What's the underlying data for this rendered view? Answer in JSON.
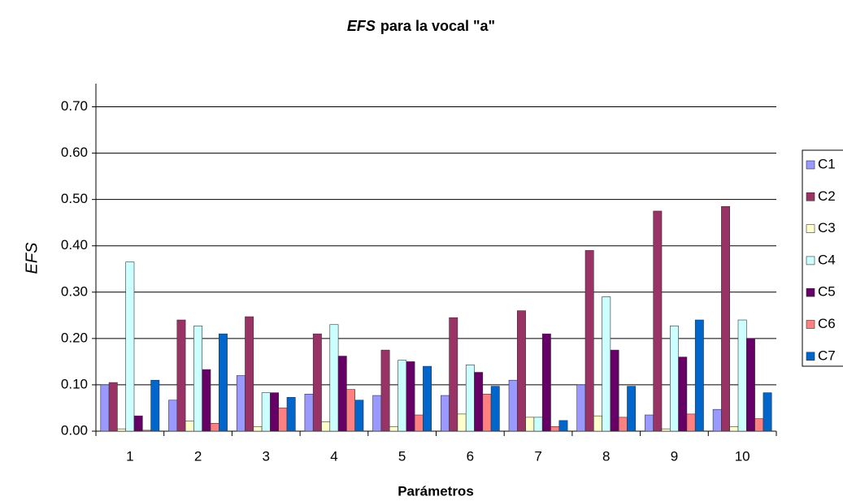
{
  "chart_data": {
    "type": "bar",
    "title_emphasis": "EFS",
    "title": "para la vocal \"a\"",
    "x_label": "Parámetros",
    "y_label": "EFS",
    "categories": [
      "1",
      "2",
      "3",
      "4",
      "5",
      "6",
      "7",
      "8",
      "9",
      "10"
    ],
    "series": [
      {
        "name": "C1",
        "color": "#9999ff",
        "values": [
          0.1,
          0.067,
          0.12,
          0.08,
          0.077,
          0.077,
          0.11,
          0.1,
          0.035,
          0.047
        ]
      },
      {
        "name": "C2",
        "color": "#993366",
        "values": [
          0.105,
          0.24,
          0.247,
          0.21,
          0.175,
          0.245,
          0.26,
          0.39,
          0.475,
          0.485
        ]
      },
      {
        "name": "C3",
        "color": "#ffffcc",
        "values": [
          0.005,
          0.022,
          0.01,
          0.02,
          0.01,
          0.037,
          0.03,
          0.033,
          0.005,
          0.01
        ]
      },
      {
        "name": "C4",
        "color": "#ccffff",
        "values": [
          0.365,
          0.227,
          0.083,
          0.23,
          0.153,
          0.143,
          0.03,
          0.29,
          0.227,
          0.24
        ]
      },
      {
        "name": "C5",
        "color": "#660066",
        "values": [
          0.033,
          0.133,
          0.083,
          0.162,
          0.15,
          0.127,
          0.21,
          0.175,
          0.16,
          0.2
        ]
      },
      {
        "name": "C6",
        "color": "#ff8080",
        "values": [
          0.002,
          0.017,
          0.05,
          0.09,
          0.035,
          0.08,
          0.01,
          0.03,
          0.037,
          0.027
        ]
      },
      {
        "name": "C7",
        "color": "#0066cc",
        "values": [
          0.11,
          0.21,
          0.073,
          0.067,
          0.14,
          0.097,
          0.023,
          0.097,
          0.24,
          0.083
        ]
      }
    ],
    "ylim": [
      0,
      0.75
    ],
    "yticks": [
      {
        "value": 0,
        "label": "0.00"
      },
      {
        "value": 0.1,
        "label": "0.10"
      },
      {
        "value": 0.2,
        "label": "0.20"
      },
      {
        "value": 0.3,
        "label": "0.30"
      },
      {
        "value": 0.4,
        "label": "0.40"
      },
      {
        "value": 0.5,
        "label": "0.50"
      },
      {
        "value": 0.6,
        "label": "0.60"
      },
      {
        "value": 0.7,
        "label": "0.70"
      }
    ],
    "grid": true,
    "legend": "right"
  }
}
